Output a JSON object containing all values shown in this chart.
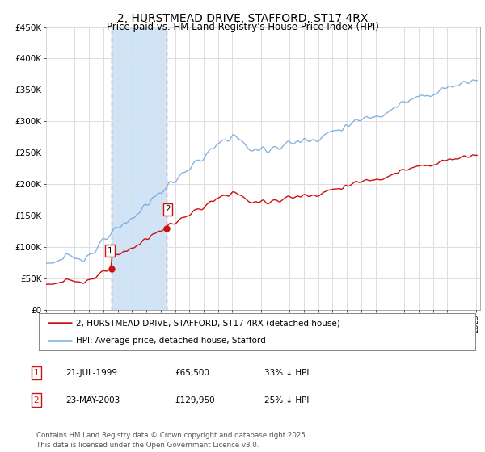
{
  "title": "2, HURSTMEAD DRIVE, STAFFORD, ST17 4RX",
  "subtitle": "Price paid vs. HM Land Registry's House Price Index (HPI)",
  "ylim": [
    0,
    450000
  ],
  "yticks": [
    0,
    50000,
    100000,
    150000,
    200000,
    250000,
    300000,
    350000,
    400000,
    450000
  ],
  "ytick_labels": [
    "£0",
    "£50K",
    "£100K",
    "£150K",
    "£200K",
    "£250K",
    "£300K",
    "£350K",
    "£400K",
    "£450K"
  ],
  "sale1_date_num": 1999.55,
  "sale1_price": 65500,
  "sale1_label": "1",
  "sale2_date_num": 2003.39,
  "sale2_price": 129950,
  "sale2_label": "2",
  "shade_color": "#d0e4f7",
  "hpi_color": "#7aaadd",
  "sale_color": "#cc1111",
  "vline_color": "#cc3333",
  "legend_line1": "2, HURSTMEAD DRIVE, STAFFORD, ST17 4RX (detached house)",
  "legend_line2": "HPI: Average price, detached house, Stafford",
  "table_entries": [
    {
      "label": "1",
      "date": "21-JUL-1999",
      "price": "£65,500",
      "hpi": "33% ↓ HPI"
    },
    {
      "label": "2",
      "date": "23-MAY-2003",
      "price": "£129,950",
      "hpi": "25% ↓ HPI"
    }
  ],
  "footer": "Contains HM Land Registry data © Crown copyright and database right 2025.\nThis data is licensed under the Open Government Licence v3.0.",
  "background_color": "#ffffff",
  "grid_color": "#dddddd"
}
